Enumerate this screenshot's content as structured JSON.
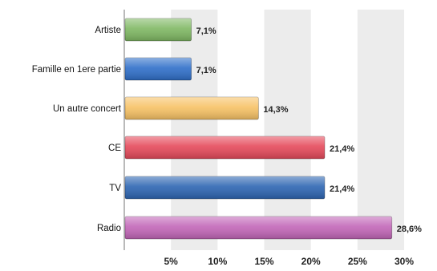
{
  "chart_data": {
    "type": "bar",
    "orientation": "horizontal",
    "categories": [
      "Artiste",
      "Famille en 1ere partie",
      "Un autre concert",
      "CE",
      "TV",
      "Radio"
    ],
    "values": [
      7.1,
      7.1,
      14.3,
      21.4,
      21.4,
      28.6
    ],
    "value_labels": [
      "7,1%",
      "7,1%",
      "14,3%",
      "21,4%",
      "21,4%",
      "28,6%"
    ],
    "colors": [
      "#7fb863",
      "#2f6fc9",
      "#f7c265",
      "#e5495a",
      "#2d65b2",
      "#c266b8"
    ],
    "xlim": [
      0,
      30
    ],
    "xticks": [
      5,
      10,
      15,
      20,
      25,
      30
    ],
    "xtick_labels": [
      "5%",
      "10%",
      "15%",
      "20%",
      "25%",
      "30%"
    ],
    "grid": "alternating vertical bands",
    "title": "",
    "xlabel": "",
    "ylabel": ""
  }
}
